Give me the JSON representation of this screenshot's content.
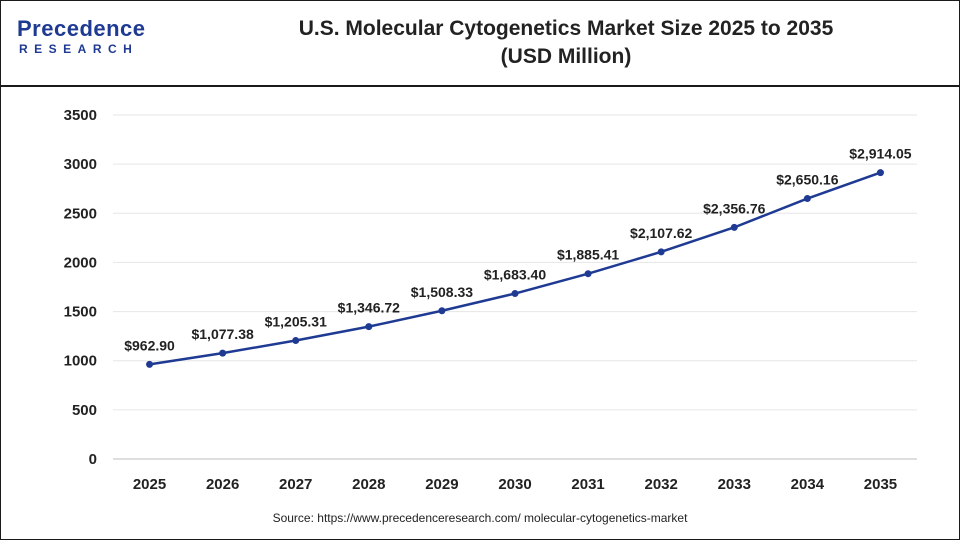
{
  "header": {
    "logo_top": "Precedence",
    "logo_bottom": "RESEARCH",
    "title_line1": "U.S. Molecular Cytogenetics Market Size 2025 to 2035",
    "title_line2": "(USD Million)"
  },
  "source": "Source: https://www.precedenceresearch.com/ molecular-cytogenetics-market",
  "colors": {
    "line": "#1f3a93",
    "marker": "#1f3a93",
    "grid": "#e6e6e6"
  },
  "chart_data": {
    "type": "line",
    "title": "U.S. Molecular Cytogenetics Market Size 2025 to 2035 (USD Million)",
    "x": [
      "2025",
      "2026",
      "2027",
      "2028",
      "2029",
      "2030",
      "2031",
      "2032",
      "2033",
      "2034",
      "2035"
    ],
    "series": [
      {
        "values": [
          962.9,
          1077.38,
          1205.31,
          1346.72,
          1508.33,
          1683.4,
          1885.41,
          2107.62,
          2356.76,
          2650.16,
          2914.05
        ]
      }
    ],
    "data_labels": [
      "$962.90",
      "$1,077.38",
      "$1,205.31",
      "$1,346.72",
      "$1,508.33",
      "$1,683.40",
      "$1,885.41",
      "$2,107.62",
      "$2,356.76",
      "$2,650.16",
      "$2,914.05"
    ],
    "yticks": [
      0,
      500,
      1000,
      1500,
      2000,
      2500,
      3000,
      3500
    ],
    "ylim": [
      0,
      3500
    ],
    "grid": true,
    "legend": "none"
  }
}
